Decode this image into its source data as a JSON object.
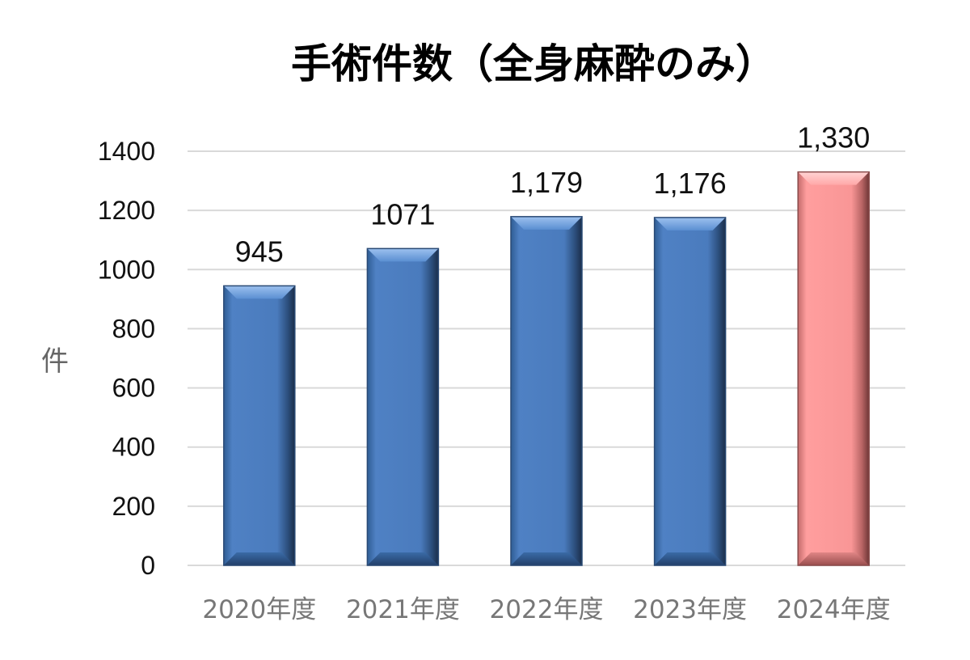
{
  "chart_data": {
    "type": "bar",
    "title": "手術件数（全身麻酔のみ）",
    "ylabel": "件",
    "xlabel": "",
    "categories": [
      "2020年度",
      "2021年度",
      "2022年度",
      "2023年度",
      "2024年度"
    ],
    "values": [
      945,
      1071,
      1179,
      1176,
      1330
    ],
    "data_labels": [
      "945",
      "1071",
      "1,179",
      "1,176",
      "1,330"
    ],
    "ylim": [
      0,
      1400
    ],
    "yticks": [
      "0",
      "200",
      "400",
      "600",
      "800",
      "1000",
      "1200",
      "1400"
    ],
    "grid": true,
    "legend": "none",
    "colors": {
      "default_bar": "#4f81bd",
      "highlight_bar": "#ff9999",
      "highlight_index": 4
    }
  }
}
